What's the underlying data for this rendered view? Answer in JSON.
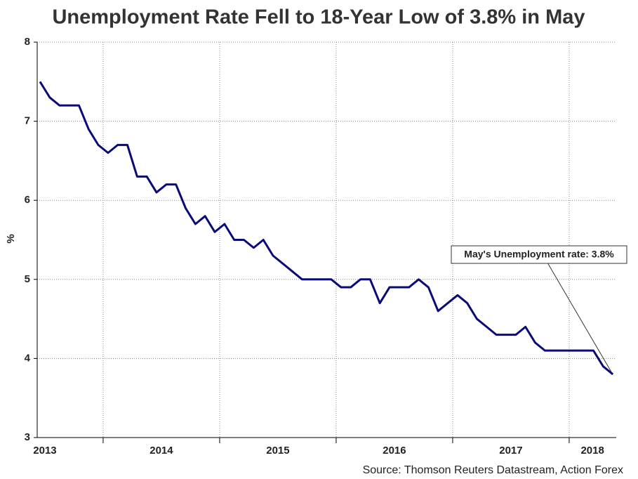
{
  "chart_data": {
    "type": "line",
    "title": "Unemployment Rate Fell to 18-Year Low of 3.8% in May",
    "ylabel": "%",
    "source": "Source: Thomson Reuters Datastream, Action Forex",
    "annotation": "May's Unemployment rate: 3.8%",
    "xlim": [
      2013.434,
      2018.404
    ],
    "xticks": [
      {
        "value": 2013.5,
        "label": "2013"
      },
      {
        "value": 2014.5,
        "label": "2014"
      },
      {
        "value": 2015.5,
        "label": "2015"
      },
      {
        "value": 2016.5,
        "label": "2016"
      },
      {
        "value": 2017.5,
        "label": "2017"
      },
      {
        "value": 2018.2,
        "label": "2018"
      }
    ],
    "xgrid": [
      2014,
      2015,
      2016,
      2017,
      2018
    ],
    "ylim": [
      3,
      8
    ],
    "yticks": [
      3,
      4,
      5,
      6,
      7,
      8
    ],
    "grid": true,
    "x": [
      2013.458,
      2013.542,
      2013.625,
      2013.708,
      2013.792,
      2013.875,
      2013.958,
      2014.042,
      2014.125,
      2014.208,
      2014.292,
      2014.375,
      2014.458,
      2014.542,
      2014.625,
      2014.708,
      2014.792,
      2014.875,
      2014.958,
      2015.042,
      2015.125,
      2015.208,
      2015.292,
      2015.375,
      2015.458,
      2015.542,
      2015.625,
      2015.708,
      2015.792,
      2015.875,
      2015.958,
      2016.042,
      2016.125,
      2016.208,
      2016.292,
      2016.375,
      2016.458,
      2016.542,
      2016.625,
      2016.708,
      2016.792,
      2016.875,
      2016.958,
      2017.042,
      2017.125,
      2017.208,
      2017.292,
      2017.375,
      2017.458,
      2017.542,
      2017.625,
      2017.708,
      2017.792,
      2017.875,
      2017.958,
      2018.042,
      2018.125,
      2018.208,
      2018.292,
      2018.375
    ],
    "series": [
      {
        "name": "Unemployment rate",
        "color": "#0a0a78",
        "values": [
          7.5,
          7.3,
          7.2,
          7.2,
          7.2,
          6.9,
          6.7,
          6.6,
          6.7,
          6.7,
          6.3,
          6.3,
          6.1,
          6.2,
          6.2,
          5.9,
          5.7,
          5.8,
          5.6,
          5.7,
          5.5,
          5.5,
          5.4,
          5.5,
          5.3,
          5.2,
          5.1,
          5.0,
          5.0,
          5.0,
          5.0,
          4.9,
          4.9,
          5.0,
          5.0,
          4.7,
          4.9,
          4.9,
          4.9,
          5.0,
          4.9,
          4.6,
          4.7,
          4.8,
          4.7,
          4.5,
          4.4,
          4.3,
          4.3,
          4.3,
          4.4,
          4.2,
          4.1,
          4.1,
          4.1,
          4.1,
          4.1,
          4.1,
          3.9,
          3.8
        ]
      }
    ]
  }
}
